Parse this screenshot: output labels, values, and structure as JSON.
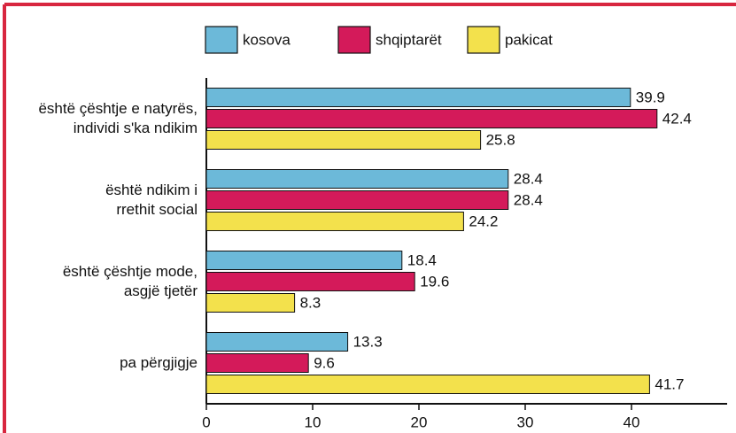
{
  "chart_data": {
    "type": "bar",
    "orientation": "horizontal",
    "categories": [
      "është çështje e natyrës,\nindividi s'ka ndikim",
      "është ndikim i\nrrethit social",
      "është çështje mode,\nasgjë tjetër",
      "pa përgjigje"
    ],
    "series": [
      {
        "name": "kosova",
        "color": "#6cb9d9",
        "values": [
          39.9,
          28.4,
          18.4,
          13.3
        ]
      },
      {
        "name": "shqiptarët",
        "color": "#d41a5a",
        "values": [
          42.4,
          28.4,
          19.6,
          9.6
        ]
      },
      {
        "name": "pakicat",
        "color": "#f3e14c",
        "values": [
          25.8,
          24.2,
          8.3,
          41.7
        ]
      }
    ],
    "xlim": [
      0,
      49
    ],
    "xticks": [
      0,
      10,
      20,
      30,
      40
    ],
    "legend": "top"
  }
}
